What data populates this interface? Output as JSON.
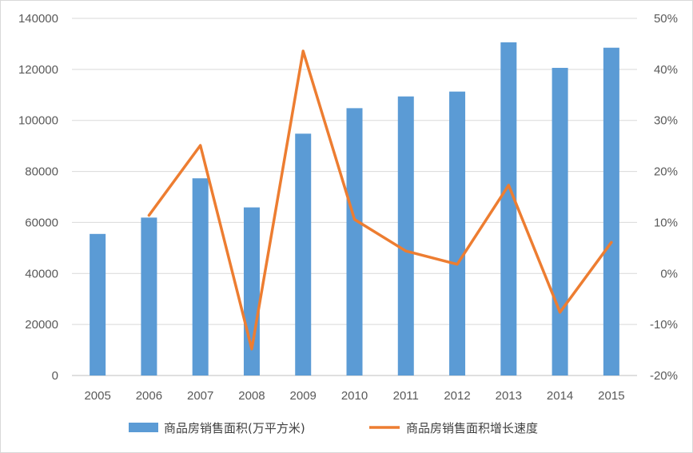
{
  "chart_data": {
    "type": "bar+line",
    "categories": [
      "2005",
      "2006",
      "2007",
      "2008",
      "2009",
      "2010",
      "2011",
      "2012",
      "2013",
      "2014",
      "2015"
    ],
    "series": [
      {
        "name": "商品房销售面积(万平方米)",
        "type": "bar",
        "axis": "left",
        "color": "#5b9bd5",
        "values": [
          55500,
          61900,
          77300,
          65900,
          94800,
          104800,
          109400,
          111300,
          130600,
          120600,
          128500
        ]
      },
      {
        "name": "商品房销售面积增长速度",
        "type": "line",
        "axis": "right",
        "color": "#ed7d31",
        "values": [
          null,
          11.4,
          25.1,
          -14.8,
          43.6,
          10.6,
          4.4,
          1.8,
          17.3,
          -7.6,
          6.1
        ]
      }
    ],
    "y_left": {
      "min": 0,
      "max": 140000,
      "ticks": [
        0,
        20000,
        40000,
        60000,
        80000,
        100000,
        120000,
        140000
      ],
      "tick_labels": [
        "0",
        "20000",
        "40000",
        "60000",
        "80000",
        "100000",
        "120000",
        "140000"
      ]
    },
    "y_right": {
      "min": -20,
      "max": 50,
      "ticks": [
        -20,
        -10,
        0,
        10,
        20,
        30,
        40,
        50
      ],
      "tick_labels": [
        "-20%",
        "-10%",
        "0%",
        "10%",
        "20%",
        "30%",
        "40%",
        "50%"
      ]
    },
    "grid": true,
    "legend_position": "bottom"
  }
}
